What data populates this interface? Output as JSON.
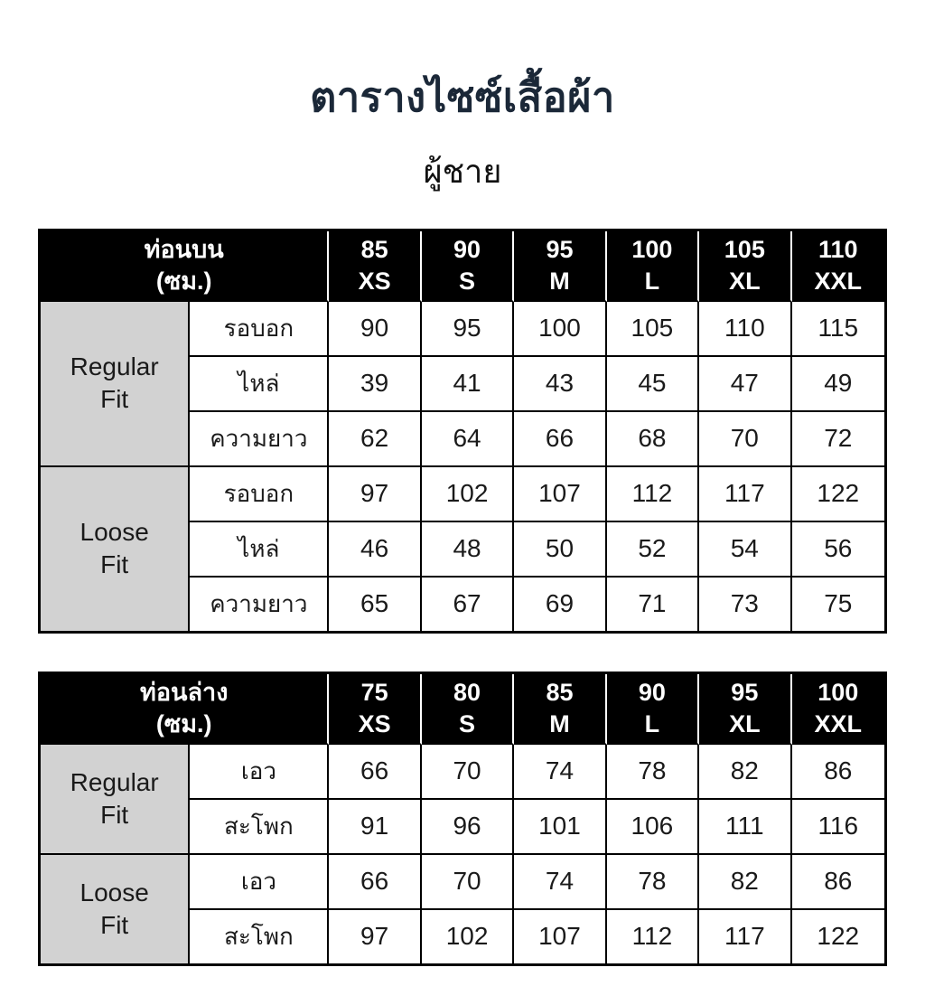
{
  "page": {
    "title": "ตารางไซซ์เสื้อผ้า",
    "subtitle": "ผู้ชาย"
  },
  "colors": {
    "title_text": "#1b2838",
    "header_bg": "#000000",
    "header_text": "#ffffff",
    "fit_cell_bg": "#d2d2d2",
    "border": "#000000",
    "body_text": "#1a1a1a"
  },
  "tables": [
    {
      "header_title": "ท่อนบน",
      "header_unit": "(ซม.)",
      "sizes": [
        {
          "value": "85",
          "label": "XS"
        },
        {
          "value": "90",
          "label": "S"
        },
        {
          "value": "95",
          "label": "M"
        },
        {
          "value": "100",
          "label": "L"
        },
        {
          "value": "105",
          "label": "XL"
        },
        {
          "value": "110",
          "label": "XXL"
        }
      ],
      "groups": [
        {
          "fit": "Regular\nFit",
          "rows": [
            {
              "label": "รอบอก",
              "values": [
                90,
                95,
                100,
                105,
                110,
                115
              ]
            },
            {
              "label": "ไหล่",
              "values": [
                39,
                41,
                43,
                45,
                47,
                49
              ]
            },
            {
              "label": "ความยาว",
              "values": [
                62,
                64,
                66,
                68,
                70,
                72
              ]
            }
          ]
        },
        {
          "fit": "Loose\nFit",
          "rows": [
            {
              "label": "รอบอก",
              "values": [
                97,
                102,
                107,
                112,
                117,
                122
              ]
            },
            {
              "label": "ไหล่",
              "values": [
                46,
                48,
                50,
                52,
                54,
                56
              ]
            },
            {
              "label": "ความยาว",
              "values": [
                65,
                67,
                69,
                71,
                73,
                75
              ]
            }
          ]
        }
      ]
    },
    {
      "header_title": "ท่อนล่าง",
      "header_unit": "(ซม.)",
      "sizes": [
        {
          "value": "75",
          "label": "XS"
        },
        {
          "value": "80",
          "label": "S"
        },
        {
          "value": "85",
          "label": "M"
        },
        {
          "value": "90",
          "label": "L"
        },
        {
          "value": "95",
          "label": "XL"
        },
        {
          "value": "100",
          "label": "XXL"
        }
      ],
      "groups": [
        {
          "fit": "Regular\nFit",
          "rows": [
            {
              "label": "เอว",
              "values": [
                66,
                70,
                74,
                78,
                82,
                86
              ]
            },
            {
              "label": "สะโพก",
              "values": [
                91,
                96,
                101,
                106,
                111,
                116
              ]
            }
          ]
        },
        {
          "fit": "Loose\nFit",
          "rows": [
            {
              "label": "เอว",
              "values": [
                66,
                70,
                74,
                78,
                82,
                86
              ]
            },
            {
              "label": "สะโพก",
              "values": [
                97,
                102,
                107,
                112,
                117,
                122
              ]
            }
          ]
        }
      ]
    }
  ]
}
